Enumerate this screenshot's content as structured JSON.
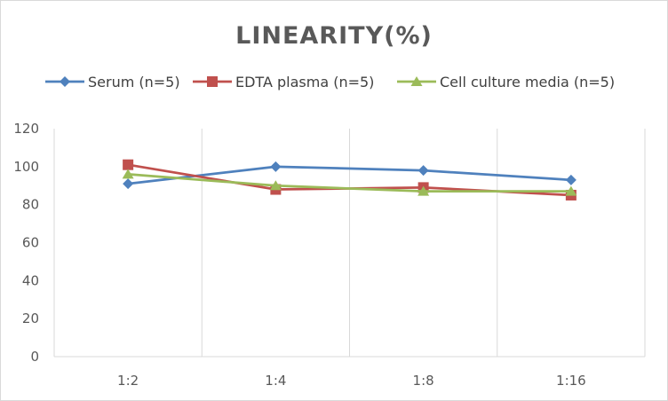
{
  "chart_data": {
    "type": "line",
    "title": "LINEARITY(%)",
    "xlabel": "",
    "ylabel": "",
    "categories": [
      "1:2",
      "1:4",
      "1:8",
      "1:16"
    ],
    "ylim": [
      0,
      120
    ],
    "yticks": [
      0,
      20,
      40,
      60,
      80,
      100,
      120
    ],
    "grid": "vertical",
    "legend_position": "top",
    "series": [
      {
        "name": "Serum (n=5)",
        "values": [
          91,
          100,
          98,
          93
        ],
        "color": "#4f81bd",
        "marker": "diamond"
      },
      {
        "name": "EDTA plasma (n=5)",
        "values": [
          101,
          88,
          89,
          85
        ],
        "color": "#c0504d",
        "marker": "square"
      },
      {
        "name": "Cell culture media (n=5)",
        "values": [
          96,
          90,
          87,
          87
        ],
        "color": "#9bbb59",
        "marker": "triangle"
      }
    ]
  }
}
